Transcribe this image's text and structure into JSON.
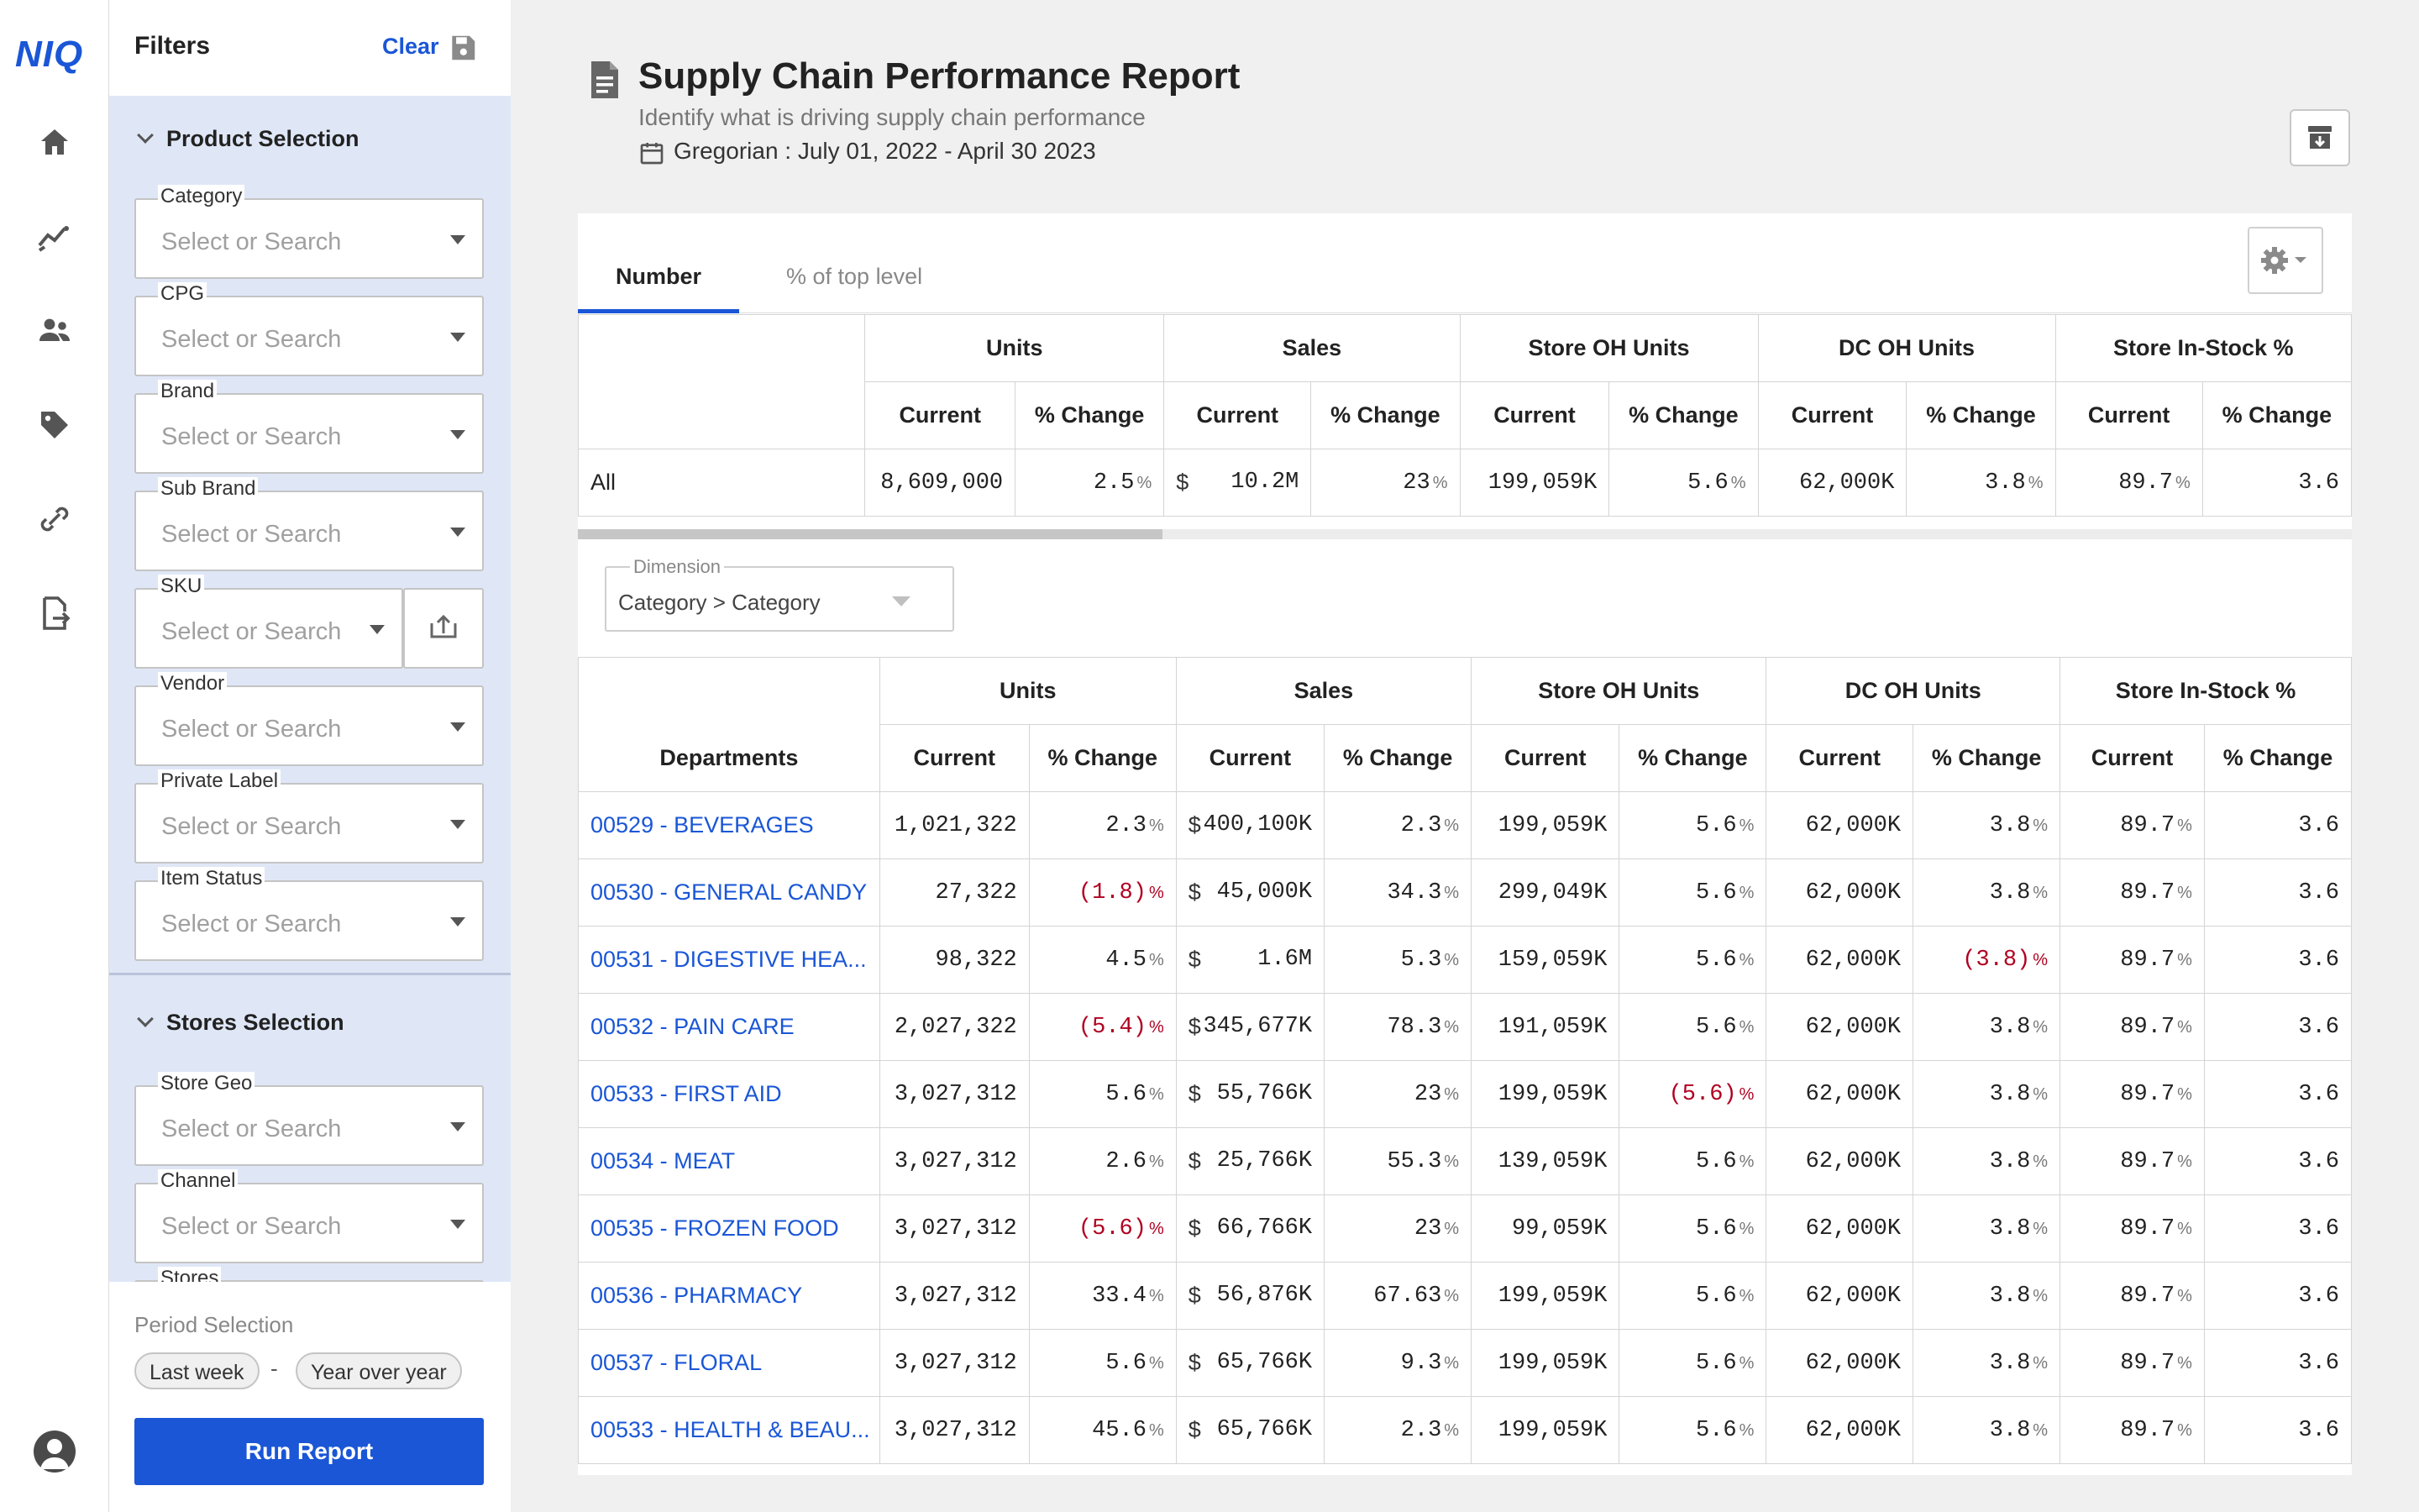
{
  "brand": {
    "logo": "NIQ",
    "accent": "#1a56d6"
  },
  "nav": {
    "icons": [
      "home-icon",
      "trend-icon",
      "users-icon",
      "tag-icon",
      "link-icon",
      "export-icon"
    ],
    "avatar": "user-avatar-icon"
  },
  "filters": {
    "title": "Filters",
    "clear_label": "Clear",
    "product_section": "Product Selection",
    "stores_section": "Stores Selection",
    "placeholder": "Select or Search",
    "fields": {
      "category": "Category",
      "cpg": "CPG",
      "brand": "Brand",
      "sub_brand": "Sub Brand",
      "sku": "SKU",
      "vendor": "Vendor",
      "private_label": "Private Label",
      "item_status": "Item Status",
      "store_geo": "Store Geo",
      "channel": "Channel",
      "stores": "Stores"
    },
    "period_label": "Period Selection",
    "period_from": "Last week",
    "period_sep": "-",
    "period_to": "Year over year",
    "run_label": "Run Report"
  },
  "report": {
    "title": "Supply Chain Performance Report",
    "subtitle": "Identify what is driving supply chain performance",
    "date_range": "Gregorian : July 01, 2022  -  April 30 2023"
  },
  "tabs": {
    "number": "Number",
    "pct_top": "% of top level"
  },
  "table": {
    "groups": [
      "Units",
      "Sales",
      "Store OH Units",
      "DC OH Units",
      "Store In-Stock %"
    ],
    "sub_current": "Current",
    "sub_change": "% Change",
    "dept_header": "Departments",
    "pct_sign": "%",
    "dollar_sign": "$",
    "total": {
      "label": "All",
      "units": "8,609,000",
      "units_chg": "2.5",
      "sales": "10.2M",
      "sales_chg": "23",
      "store_oh": "199,059K",
      "store_oh_chg": "5.6",
      "dc_oh": "62,000K",
      "dc_oh_chg": "3.8",
      "instock": "89.7",
      "instock_chg": "3.6"
    },
    "rows": [
      {
        "dept": "00529 - BEVERAGES",
        "units": "1,021,322",
        "units_chg": "2.3",
        "sales": "400,100K",
        "sales_chg": "2.3",
        "store_oh": "199,059K",
        "store_oh_chg": "5.6",
        "dc_oh": "62,000K",
        "dc_oh_chg": "3.8",
        "instock": "89.7",
        "instock_chg": "3.6"
      },
      {
        "dept": "00530 - GENERAL CANDY",
        "units": "27,322",
        "units_chg": "(1.8)",
        "sales": "45,000K",
        "sales_chg": "34.3",
        "store_oh": "299,049K",
        "store_oh_chg": "5.6",
        "dc_oh": "62,000K",
        "dc_oh_chg": "3.8",
        "instock": "89.7",
        "instock_chg": "3.6"
      },
      {
        "dept": "00531 - DIGESTIVE HEA...",
        "units": "98,322",
        "units_chg": "4.5",
        "sales": "1.6M",
        "sales_chg": "5.3",
        "store_oh": "159,059K",
        "store_oh_chg": "5.6",
        "dc_oh": "62,000K",
        "dc_oh_chg": "(3.8)",
        "instock": "89.7",
        "instock_chg": "3.6"
      },
      {
        "dept": "00532 - PAIN CARE",
        "units": "2,027,322",
        "units_chg": "(5.4)",
        "sales": "345,677K",
        "sales_chg": "78.3",
        "store_oh": "191,059K",
        "store_oh_chg": "5.6",
        "dc_oh": "62,000K",
        "dc_oh_chg": "3.8",
        "instock": "89.7",
        "instock_chg": "3.6"
      },
      {
        "dept": "00533 - FIRST AID",
        "units": "3,027,312",
        "units_chg": "5.6",
        "sales": "55,766K",
        "sales_chg": "23",
        "store_oh": "199,059K",
        "store_oh_chg": "(5.6)",
        "dc_oh": "62,000K",
        "dc_oh_chg": "3.8",
        "instock": "89.7",
        "instock_chg": "3.6"
      },
      {
        "dept": "00534 - MEAT",
        "units": "3,027,312",
        "units_chg": "2.6",
        "sales": "25,766K",
        "sales_chg": "55.3",
        "store_oh": "139,059K",
        "store_oh_chg": "5.6",
        "dc_oh": "62,000K",
        "dc_oh_chg": "3.8",
        "instock": "89.7",
        "instock_chg": "3.6"
      },
      {
        "dept": "00535 - FROZEN FOOD",
        "units": "3,027,312",
        "units_chg": "(5.6)",
        "sales": "66,766K",
        "sales_chg": "23",
        "store_oh": "99,059K",
        "store_oh_chg": "5.6",
        "dc_oh": "62,000K",
        "dc_oh_chg": "3.8",
        "instock": "89.7",
        "instock_chg": "3.6"
      },
      {
        "dept": "00536 - PHARMACY",
        "units": "3,027,312",
        "units_chg": "33.4",
        "sales": "56,876K",
        "sales_chg": "67.63",
        "store_oh": "199,059K",
        "store_oh_chg": "5.6",
        "dc_oh": "62,000K",
        "dc_oh_chg": "3.8",
        "instock": "89.7",
        "instock_chg": "3.6"
      },
      {
        "dept": "00537 - FLORAL",
        "units": "3,027,312",
        "units_chg": "5.6",
        "sales": "65,766K",
        "sales_chg": "9.3",
        "store_oh": "199,059K",
        "store_oh_chg": "5.6",
        "dc_oh": "62,000K",
        "dc_oh_chg": "3.8",
        "instock": "89.7",
        "instock_chg": "3.6"
      },
      {
        "dept": "00533 - HEALTH & BEAU...",
        "units": "3,027,312",
        "units_chg": "45.6",
        "sales": "65,766K",
        "sales_chg": "2.3",
        "store_oh": "199,059K",
        "store_oh_chg": "5.6",
        "dc_oh": "62,000K",
        "dc_oh_chg": "3.8",
        "instock": "89.7",
        "instock_chg": "3.6"
      }
    ]
  },
  "dimension": {
    "label": "Dimension",
    "value": "Category > Category"
  }
}
